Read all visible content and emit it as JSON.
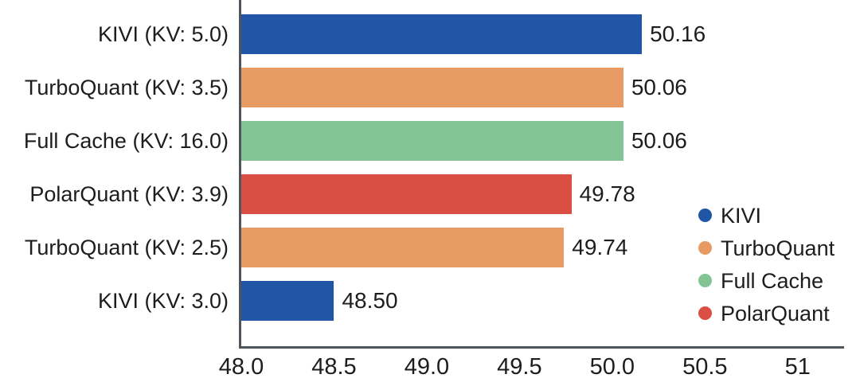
{
  "chart_data": {
    "type": "bar",
    "orientation": "horizontal",
    "title": "",
    "xlabel": "",
    "ylabel": "",
    "xlim": [
      48.0,
      51.25
    ],
    "grid": false,
    "legend_position": "right-lower",
    "bars": [
      {
        "label": "KIVI (KV: 5.0)",
        "series": "KIVI",
        "value": 50.16,
        "value_label": "50.16"
      },
      {
        "label": "TurboQuant (KV: 3.5)",
        "series": "TurboQuant",
        "value": 50.06,
        "value_label": "50.06"
      },
      {
        "label": "Full Cache (KV: 16.0)",
        "series": "Full Cache",
        "value": 50.06,
        "value_label": "50.06"
      },
      {
        "label": "PolarQuant (KV: 3.9)",
        "series": "PolarQuant",
        "value": 49.78,
        "value_label": "49.78"
      },
      {
        "label": "TurboQuant (KV: 2.5)",
        "series": "TurboQuant",
        "value": 49.74,
        "value_label": "49.74"
      },
      {
        "label": "KIVI (KV: 3.0)",
        "series": "KIVI",
        "value": 48.5,
        "value_label": "48.50"
      }
    ],
    "xticks": [
      {
        "value": 48.0,
        "label": "48.0"
      },
      {
        "value": 48.5,
        "label": "48.5"
      },
      {
        "value": 49.0,
        "label": "49.0"
      },
      {
        "value": 49.5,
        "label": "49.5"
      },
      {
        "value": 50.0,
        "label": "50.0"
      },
      {
        "value": 50.5,
        "label": "50.5"
      },
      {
        "value": 51.0,
        "label": "51"
      }
    ],
    "legend": [
      {
        "name": "KIVI",
        "color": "#2056a5"
      },
      {
        "name": "TurboQuant",
        "color": "#e89a64"
      },
      {
        "name": "Full Cache",
        "color": "#82c494"
      },
      {
        "name": "PolarQuant",
        "color": "#d94f44"
      }
    ],
    "colors": {
      "axis": "#50555b",
      "text": "#1d1d1f"
    }
  }
}
